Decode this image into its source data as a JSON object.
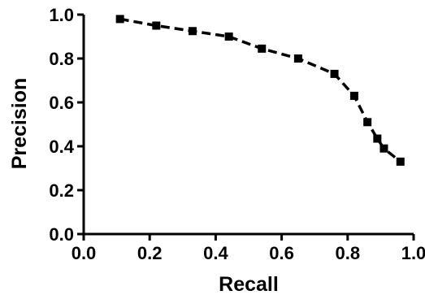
{
  "chart_data": {
    "type": "line",
    "title": "",
    "xlabel": "Recall",
    "ylabel": "Precision",
    "xlim": [
      0.0,
      1.0
    ],
    "ylim": [
      0.0,
      1.0
    ],
    "xticks": [
      "0.0",
      "0.2",
      "0.4",
      "0.6",
      "0.8",
      "1.0"
    ],
    "yticks": [
      "0.0",
      "0.2",
      "0.4",
      "0.6",
      "0.8",
      "1.0"
    ],
    "grid": false,
    "line_style": "dashed",
    "marker": "square",
    "color": "#000000",
    "series": [
      {
        "x": [
          0.11,
          0.22,
          0.33,
          0.44,
          0.54,
          0.65,
          0.76,
          0.82,
          0.86,
          0.89,
          0.91,
          0.96
        ],
        "y": [
          0.98,
          0.95,
          0.925,
          0.9,
          0.845,
          0.8,
          0.73,
          0.63,
          0.51,
          0.435,
          0.39,
          0.33
        ]
      }
    ]
  }
}
